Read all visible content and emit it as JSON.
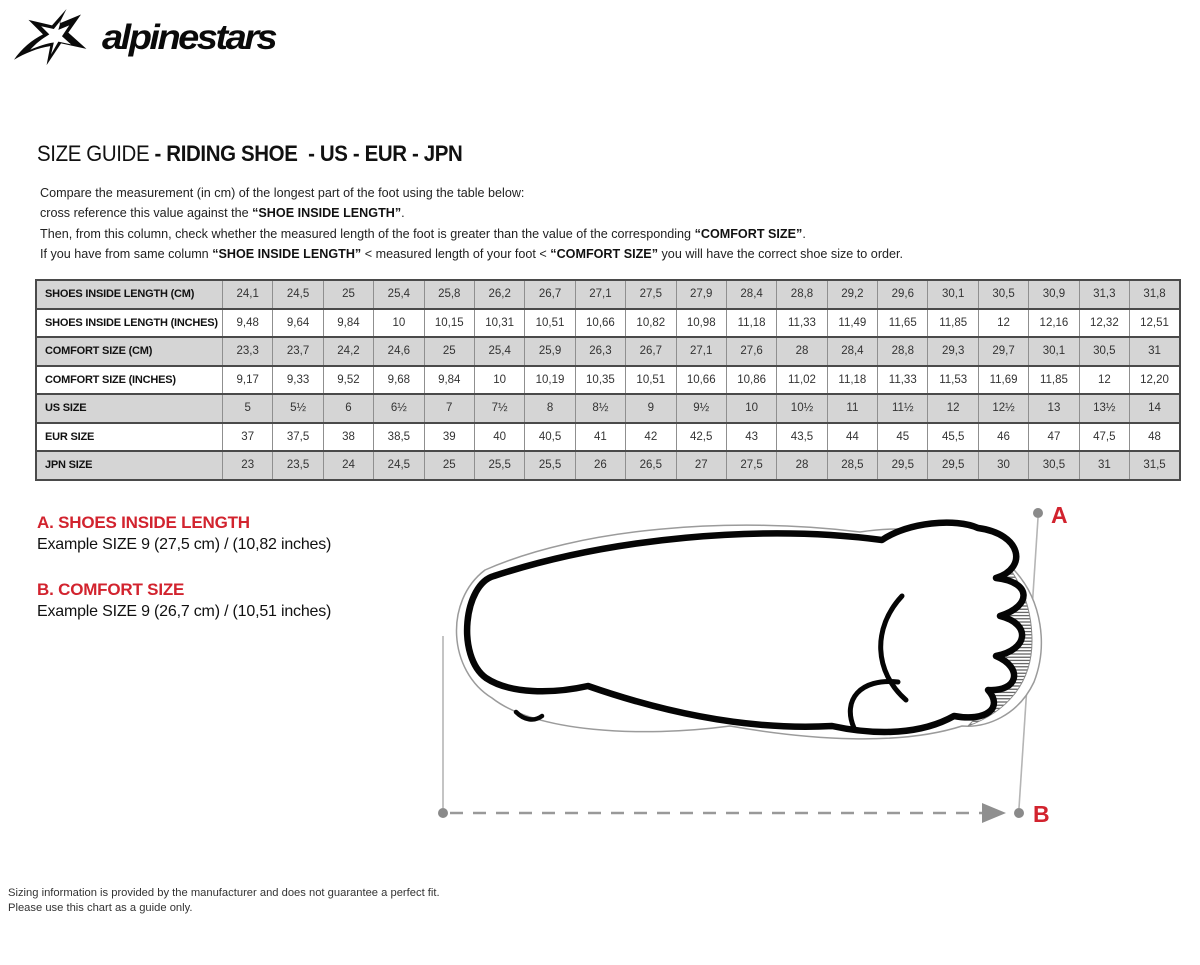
{
  "brand": {
    "wordmark": "alpinestars"
  },
  "title": {
    "prefix": "SIZE GUIDE ",
    "bold": "- RIDING SHOE  - US - EUR - JPN"
  },
  "intro": {
    "l1": "Compare the measurement (in cm) of the longest part of the foot using the table below:",
    "l2a": "cross reference this value against the ",
    "l2b": "“SHOE INSIDE LENGTH”",
    "l2c": ".",
    "l3a": "Then, from this column, check whether the measured length of the foot is greater than the value of the corresponding ",
    "l3b": "“COMFORT SIZE”",
    "l3c": ".",
    "l4a": "If you have from same column ",
    "l4b": "“SHOE INSIDE LENGTH”",
    "l4c": " <  measured length of your foot  < ",
    "l4d": "“COMFORT SIZE”",
    "l4e": " you will have the correct shoe size to order."
  },
  "chart_data": {
    "type": "table",
    "title": "SIZE GUIDE - RIDING SHOE - US - EUR - JPN",
    "rows": [
      {
        "label": "SHOES INSIDE LENGTH (CM)",
        "values": [
          "24,1",
          "24,5",
          "25",
          "25,4",
          "25,8",
          "26,2",
          "26,7",
          "27,1",
          "27,5",
          "27,9",
          "28,4",
          "28,8",
          "29,2",
          "29,6",
          "30,1",
          "30,5",
          "30,9",
          "31,3",
          "31,8"
        ]
      },
      {
        "label": "SHOES INSIDE LENGTH (INCHES)",
        "values": [
          "9,48",
          "9,64",
          "9,84",
          "10",
          "10,15",
          "10,31",
          "10,51",
          "10,66",
          "10,82",
          "10,98",
          "11,18",
          "11,33",
          "11,49",
          "11,65",
          "11,85",
          "12",
          "12,16",
          "12,32",
          "12,51"
        ]
      },
      {
        "label": "COMFORT SIZE (CM)",
        "values": [
          "23,3",
          "23,7",
          "24,2",
          "24,6",
          "25",
          "25,4",
          "25,9",
          "26,3",
          "26,7",
          "27,1",
          "27,6",
          "28",
          "28,4",
          "28,8",
          "29,3",
          "29,7",
          "30,1",
          "30,5",
          "31"
        ]
      },
      {
        "label": "COMFORT SIZE (INCHES)",
        "values": [
          "9,17",
          "9,33",
          "9,52",
          "9,68",
          "9,84",
          "10",
          "10,19",
          "10,35",
          "10,51",
          "10,66",
          "10,86",
          "11,02",
          "11,18",
          "11,33",
          "11,53",
          "11,69",
          "11,85",
          "12",
          "12,20"
        ]
      },
      {
        "label": "US SIZE",
        "values": [
          "5",
          "5½",
          "6",
          "6½",
          "7",
          "7½",
          "8",
          "8½",
          "9",
          "9½",
          "10",
          "10½",
          "11",
          "11½",
          "12",
          "12½",
          "13",
          "13½",
          "14"
        ]
      },
      {
        "label": "EUR SIZE",
        "values": [
          "37",
          "37,5",
          "38",
          "38,5",
          "39",
          "40",
          "40,5",
          "41",
          "42",
          "42,5",
          "43",
          "43,5",
          "44",
          "45",
          "45,5",
          "46",
          "47",
          "47,5",
          "48"
        ]
      },
      {
        "label": "JPN SIZE",
        "values": [
          "23",
          "23,5",
          "24",
          "24,5",
          "25",
          "25,5",
          "25,5",
          "26",
          "26,5",
          "27",
          "27,5",
          "28",
          "28,5",
          "29,5",
          "29,5",
          "30",
          "30,5",
          "31",
          "31,5"
        ]
      }
    ]
  },
  "legend_a": {
    "heading": "A. SHOES INSIDE LENGTH",
    "example": "Example SIZE 9 (27,5 cm) / (10,82 inches)"
  },
  "legend_b": {
    "heading": "B. COMFORT SIZE",
    "example": "Example SIZE 9 (26,7 cm) / (10,51 inches)"
  },
  "diagram": {
    "label_a": "A",
    "label_b": "B"
  },
  "footer": {
    "line1": "Sizing information is provided by the manufacturer and does not guarantee a perfect fit.",
    "line2": "Please use this chart as a guide only."
  },
  "colors": {
    "accent_red": "#d2232e",
    "table_gray": "#d5d5d5",
    "border_dark": "#4a4a4a",
    "border_light": "#8f8f8f",
    "guide_gray": "#8a8a8a"
  }
}
